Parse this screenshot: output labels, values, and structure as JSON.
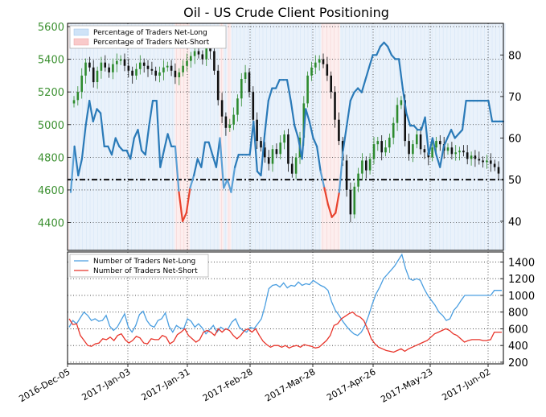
{
  "chart_data": {
    "title": "Oil - US Crude Client Positioning",
    "x_ticks": [
      "2016-Dec-05",
      "2017-Jan-03",
      "2017-Jan-31",
      "2017-Feb-28",
      "2017-Mar-28",
      "2017-Apr-26",
      "2017-May-23",
      "2017-Jun-02"
    ],
    "top_panel": {
      "type": "candlestick+line",
      "left_axis": {
        "ticks": [
          4400,
          4600,
          4800,
          5000,
          5200,
          5400,
          5600
        ],
        "range": [
          4230,
          5620
        ]
      },
      "right_axis": {
        "ticks": [
          40,
          50,
          60,
          70,
          80
        ],
        "range": [
          33,
          87.6
        ]
      },
      "reference_line": 50,
      "legend": [
        {
          "label": "Percentage of Traders Net-Long",
          "color": "#cfe3f7"
        },
        {
          "label": "Percentage of Traders Net-Short",
          "color": "#f9caca"
        }
      ],
      "price_close": [
        5150,
        5200,
        5300,
        5380,
        5350,
        5260,
        5330,
        5380,
        5350,
        5320,
        5370,
        5390,
        5400,
        5360,
        5330,
        5300,
        5340,
        5380,
        5360,
        5340,
        5330,
        5300,
        5320,
        5350,
        5360,
        5330,
        5290,
        5320,
        5360,
        5390,
        5420,
        5450,
        5430,
        5400,
        5470,
        5450,
        5330,
        5150,
        5050,
        4980,
        5000,
        5060,
        5160,
        5280,
        5320,
        5200,
        5030,
        4900,
        4860,
        4800,
        4760,
        4850,
        4820,
        4890,
        4940,
        4760,
        4700,
        4800,
        4920,
        5130,
        5300,
        5350,
        5380,
        5400,
        5370,
        5300,
        5200,
        5030,
        4900,
        4780,
        4600,
        4450,
        4620,
        4700,
        4780,
        4720,
        4790,
        4880,
        4900,
        4830,
        4860,
        4920,
        5010,
        5120,
        5150,
        4900,
        4820,
        4880,
        4940,
        4850,
        4830,
        4800,
        4860,
        4900,
        4880,
        4840,
        4860,
        4820,
        4830,
        4840,
        4830,
        4790,
        4810,
        4790,
        4780,
        4770,
        4780,
        4760,
        4740,
        4700
      ],
      "pct_net_long": [
        47,
        58,
        51,
        55,
        63,
        69,
        64,
        67,
        66,
        58,
        58,
        56,
        60,
        58,
        57,
        57,
        55,
        60,
        62,
        57,
        56,
        63,
        69,
        69,
        53,
        57,
        61,
        58,
        58,
        47,
        40,
        42,
        48,
        51,
        55,
        53,
        59,
        59,
        56,
        53,
        60,
        48,
        50,
        47,
        53,
        56,
        56,
        56,
        56,
        64,
        52,
        51,
        61,
        69,
        72,
        72,
        74,
        74,
        74,
        69,
        63,
        60,
        55,
        67,
        64,
        60,
        58,
        52,
        48,
        44,
        41,
        42,
        47,
        57,
        63,
        69,
        71,
        72,
        71,
        74,
        77,
        80,
        80,
        82,
        83,
        82,
        80,
        79,
        79,
        72,
        66,
        63,
        63,
        62,
        62,
        65,
        56,
        60,
        56,
        53,
        58,
        60,
        62,
        60,
        61,
        62,
        69,
        69,
        69,
        69,
        69,
        69,
        69,
        64,
        64,
        64,
        64
      ],
      "shade_pct": [
        47,
        58,
        51,
        55,
        63,
        69,
        64,
        67,
        66,
        58,
        58,
        56,
        60,
        58,
        57,
        57,
        55,
        60,
        62,
        57,
        56,
        63,
        69,
        69,
        53,
        57,
        61,
        58,
        58,
        47,
        40,
        42,
        48,
        51,
        55,
        53,
        59,
        59,
        56,
        53,
        60,
        48,
        50,
        47,
        53,
        56,
        56,
        56,
        56,
        64,
        52,
        51,
        61,
        69,
        72,
        72,
        74,
        74,
        74,
        69,
        63,
        60,
        55,
        67,
        64,
        60,
        58,
        52,
        48,
        44,
        41,
        42,
        47,
        57,
        63,
        69,
        71,
        72,
        71,
        74,
        77,
        80,
        80,
        82,
        83,
        82,
        80,
        79,
        79,
        72,
        66,
        63,
        63,
        62,
        62,
        65,
        56,
        60,
        56,
        53,
        58,
        60,
        62,
        60,
        61,
        62,
        69,
        69,
        69,
        69,
        69,
        69,
        69,
        64,
        64,
        64,
        64
      ]
    },
    "bottom_panel": {
      "type": "line",
      "right_axis": {
        "ticks": [
          200,
          400,
          600,
          800,
          1000,
          1200,
          1400
        ],
        "range": [
          180,
          1520
        ]
      },
      "legend": [
        {
          "label": "Number of Traders Net-Long",
          "color": "#4a9ee0"
        },
        {
          "label": "Number of Traders Net-Short",
          "color": "#e8342a"
        }
      ],
      "series": [
        {
          "name": "Number of Traders Net-Long",
          "color": "#4a9ee0",
          "values": [
            620,
            700,
            660,
            730,
            800,
            760,
            700,
            720,
            690,
            700,
            760,
            630,
            580,
            620,
            700,
            780,
            620,
            560,
            640,
            770,
            810,
            700,
            640,
            620,
            700,
            720,
            790,
            630,
            560,
            640,
            610,
            600,
            720,
            690,
            620,
            660,
            610,
            540,
            590,
            640,
            560,
            620,
            590,
            600,
            680,
            720,
            620,
            580,
            560,
            620,
            600,
            660,
            720,
            880,
            1080,
            1120,
            1130,
            1100,
            1150,
            1090,
            1120,
            1110,
            1160,
            1120,
            1140,
            1130,
            1180,
            1150,
            1120,
            1100,
            1060,
            920,
            820,
            760,
            690,
            630,
            580,
            540,
            520,
            560,
            640,
            760,
            900,
            1020,
            1100,
            1200,
            1250,
            1300,
            1350,
            1420,
            1490,
            1320,
            1200,
            1180,
            1200,
            1180,
            1080,
            1000,
            940,
            880,
            800,
            760,
            700,
            720,
            820,
            870,
            940,
            1000,
            1000,
            1000,
            1000,
            1000,
            1000,
            1000,
            1000,
            1060,
            1060,
            1060
          ]
        },
        {
          "name": "Number of Traders Net-Short",
          "color": "#e8342a",
          "values": [
            720,
            650,
            660,
            520,
            460,
            400,
            390,
            420,
            430,
            480,
            470,
            500,
            460,
            520,
            540,
            470,
            430,
            460,
            510,
            490,
            430,
            420,
            480,
            470,
            470,
            520,
            500,
            420,
            450,
            530,
            560,
            600,
            520,
            480,
            440,
            470,
            560,
            580,
            560,
            520,
            600,
            560,
            600,
            580,
            520,
            480,
            520,
            580,
            600,
            560,
            600,
            520,
            450,
            410,
            380,
            400,
            400,
            380,
            400,
            370,
            390,
            400,
            380,
            410,
            400,
            390,
            370,
            380,
            420,
            460,
            520,
            640,
            660,
            720,
            750,
            780,
            800,
            760,
            740,
            700,
            600,
            480,
            420,
            380,
            360,
            340,
            330,
            320,
            340,
            360,
            330,
            360,
            380,
            400,
            420,
            440,
            460,
            500,
            540,
            560,
            580,
            600,
            580,
            540,
            520,
            480,
            440,
            460,
            470,
            470,
            470,
            460,
            460,
            470,
            560,
            560,
            560
          ]
        }
      ]
    }
  }
}
